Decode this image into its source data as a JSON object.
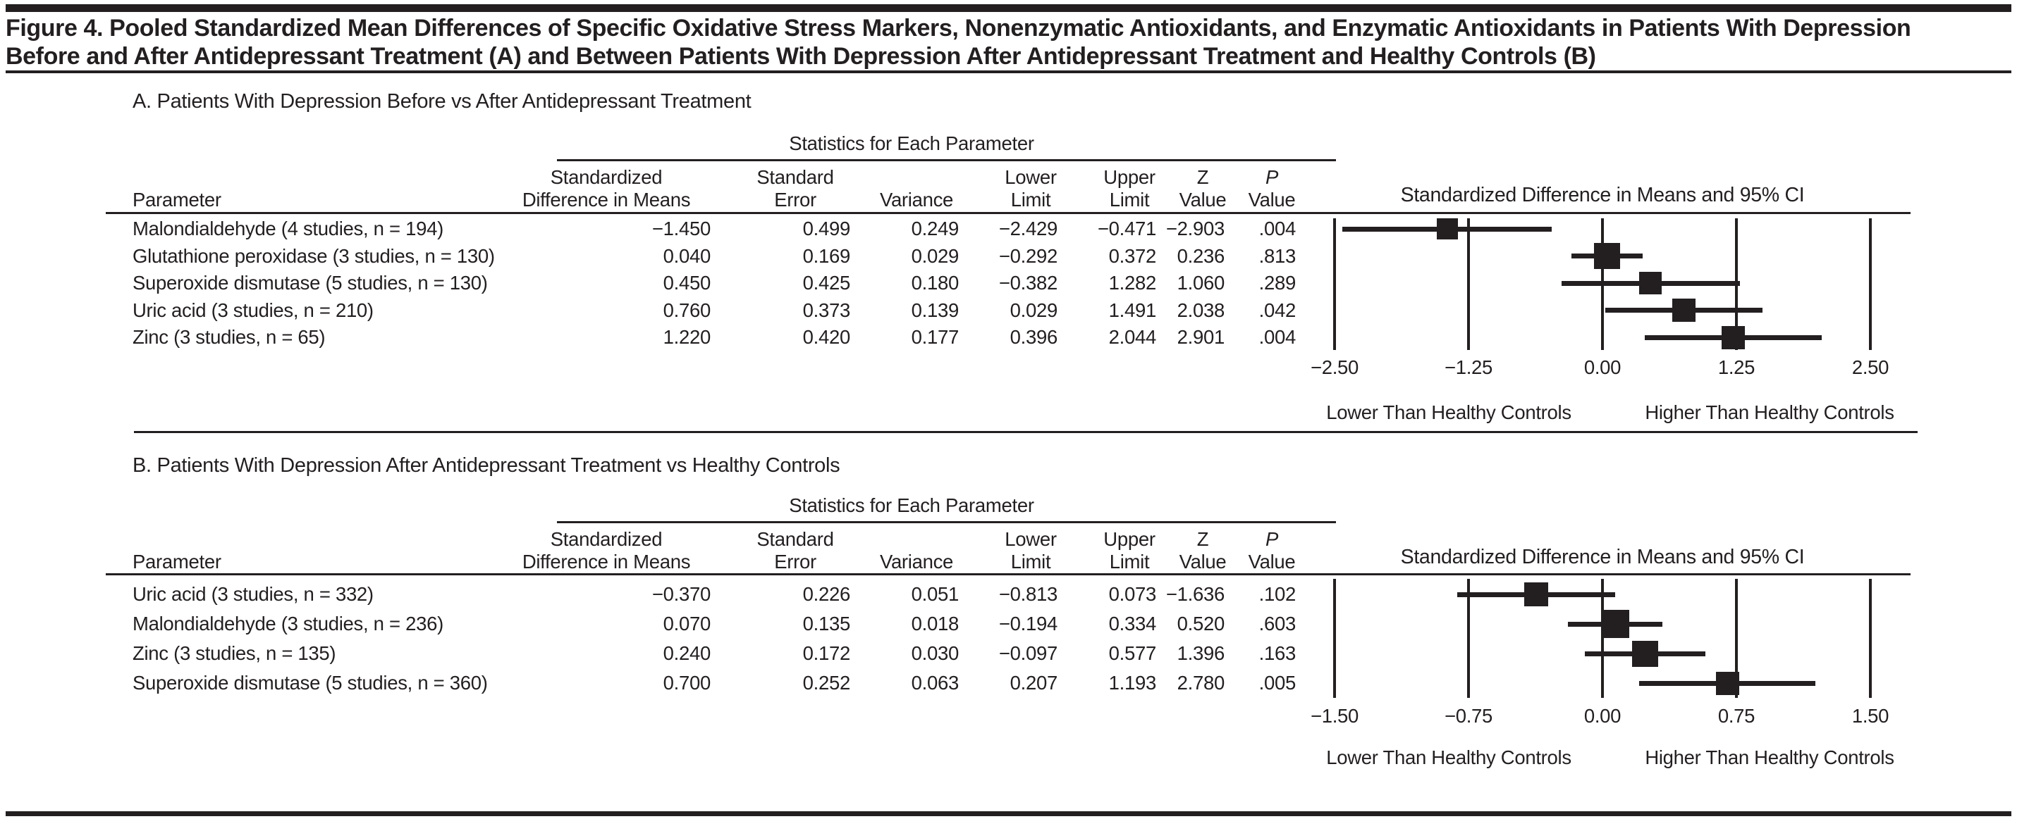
{
  "figure": {
    "title_line1": "Figure 4. Pooled Standardized Mean Differences of Specific Oxidative Stress Markers, Nonenzymatic Antioxidants, and Enzymatic Antioxidants in Patients With Depression",
    "title_line2": "Before and After Antidepressant Treatment (A) and Between Patients With Depression After Antidepressant Treatment and Healthy Controls (B)"
  },
  "table": {
    "group_header": "Statistics for Each Parameter",
    "param_header": "Parameter",
    "columns": [
      {
        "line1": "Standardized",
        "line2": "Difference in Means"
      },
      {
        "line1": "Standard",
        "line2": "Error"
      },
      {
        "line1": "",
        "line2": "Variance"
      },
      {
        "line1": "Lower",
        "line2": "Limit"
      },
      {
        "line1": "Upper",
        "line2": "Limit"
      },
      {
        "line1": "Z",
        "line2": "Value"
      },
      {
        "line1": "P",
        "line2": "Value",
        "italic_line1": true
      }
    ]
  },
  "plot": {
    "title": "Standardized Difference in Means and 95% CI",
    "lower_label": "Lower Than Healthy Controls",
    "higher_label": "Higher Than Healthy Controls"
  },
  "colors": {
    "ink": "#231f20",
    "background": "#ffffff"
  },
  "chart_data": [
    {
      "type": "forest",
      "panel": "A",
      "panel_title": "A. Patients With Depression Before vs After Antidepressant Treatment",
      "axis_range": [
        -2.5,
        2.5
      ],
      "tick_values": [
        -2.5,
        -1.25,
        0,
        1.25,
        2.5
      ],
      "axis_ticks": [
        "−2.50",
        "−1.25",
        "0.00",
        "1.25",
        "2.50"
      ],
      "rows": [
        {
          "parameter": "Malondialdehyde (4 studies, n = 194)",
          "stats": [
            "−1.450",
            "0.499",
            "0.249",
            "−2.429",
            "−0.471",
            "−2.903",
            ".004"
          ],
          "point": -1.45,
          "ci": [
            -2.429,
            -0.471
          ],
          "marker_px": 30
        },
        {
          "parameter": "Glutathione peroxidase (3 studies, n = 130)",
          "stats": [
            "0.040",
            "0.169",
            "0.029",
            "−0.292",
            "0.372",
            "0.236",
            ".813"
          ],
          "point": 0.04,
          "ci": [
            -0.292,
            0.372
          ],
          "marker_px": 37
        },
        {
          "parameter": "Superoxide dismutase (5 studies, n = 130)",
          "stats": [
            "0.450",
            "0.425",
            "0.180",
            "−0.382",
            "1.282",
            "1.060",
            ".289"
          ],
          "point": 0.45,
          "ci": [
            -0.382,
            1.282
          ],
          "marker_px": 32
        },
        {
          "parameter": "Uric acid (3 studies, n = 210)",
          "stats": [
            "0.760",
            "0.373",
            "0.139",
            "0.029",
            "1.491",
            "2.038",
            ".042"
          ],
          "point": 0.76,
          "ci": [
            0.029,
            1.491
          ],
          "marker_px": 33
        },
        {
          "parameter": "Zinc (3 studies, n = 65)",
          "stats": [
            "1.220",
            "0.420",
            "0.177",
            "0.396",
            "2.044",
            "2.901",
            ".004"
          ],
          "point": 1.22,
          "ci": [
            0.396,
            2.044
          ],
          "marker_px": 33
        }
      ]
    },
    {
      "type": "forest",
      "panel": "B",
      "panel_title": "B. Patients With Depression After Antidepressant Treatment vs Healthy Controls",
      "axis_range": [
        -1.5,
        1.5
      ],
      "tick_values": [
        -1.5,
        -0.75,
        0,
        0.75,
        1.5
      ],
      "axis_ticks": [
        "−1.50",
        "−0.75",
        "0.00",
        "0.75",
        "1.50"
      ],
      "rows": [
        {
          "parameter": "Uric acid (3 studies, n = 332)",
          "stats": [
            "−0.370",
            "0.226",
            "0.051",
            "−0.813",
            "0.073",
            "−1.636",
            ".102"
          ],
          "point": -0.37,
          "ci": [
            -0.813,
            0.073
          ],
          "marker_px": 34
        },
        {
          "parameter": "Malondialdehyde (3 studies, n = 236)",
          "stats": [
            "0.070",
            "0.135",
            "0.018",
            "−0.194",
            "0.334",
            "0.520",
            ".603"
          ],
          "point": 0.07,
          "ci": [
            -0.194,
            0.334
          ],
          "marker_px": 40
        },
        {
          "parameter": "Zinc (3 studies, n = 135)",
          "stats": [
            "0.240",
            "0.172",
            "0.030",
            "−0.097",
            "0.577",
            "1.396",
            ".163"
          ],
          "point": 0.24,
          "ci": [
            -0.097,
            0.577
          ],
          "marker_px": 37
        },
        {
          "parameter": "Superoxide dismutase (5 studies, n = 360)",
          "stats": [
            "0.700",
            "0.252",
            "0.063",
            "0.207",
            "1.193",
            "2.780",
            ".005"
          ],
          "point": 0.7,
          "ci": [
            0.207,
            1.193
          ],
          "marker_px": 33
        }
      ]
    }
  ]
}
